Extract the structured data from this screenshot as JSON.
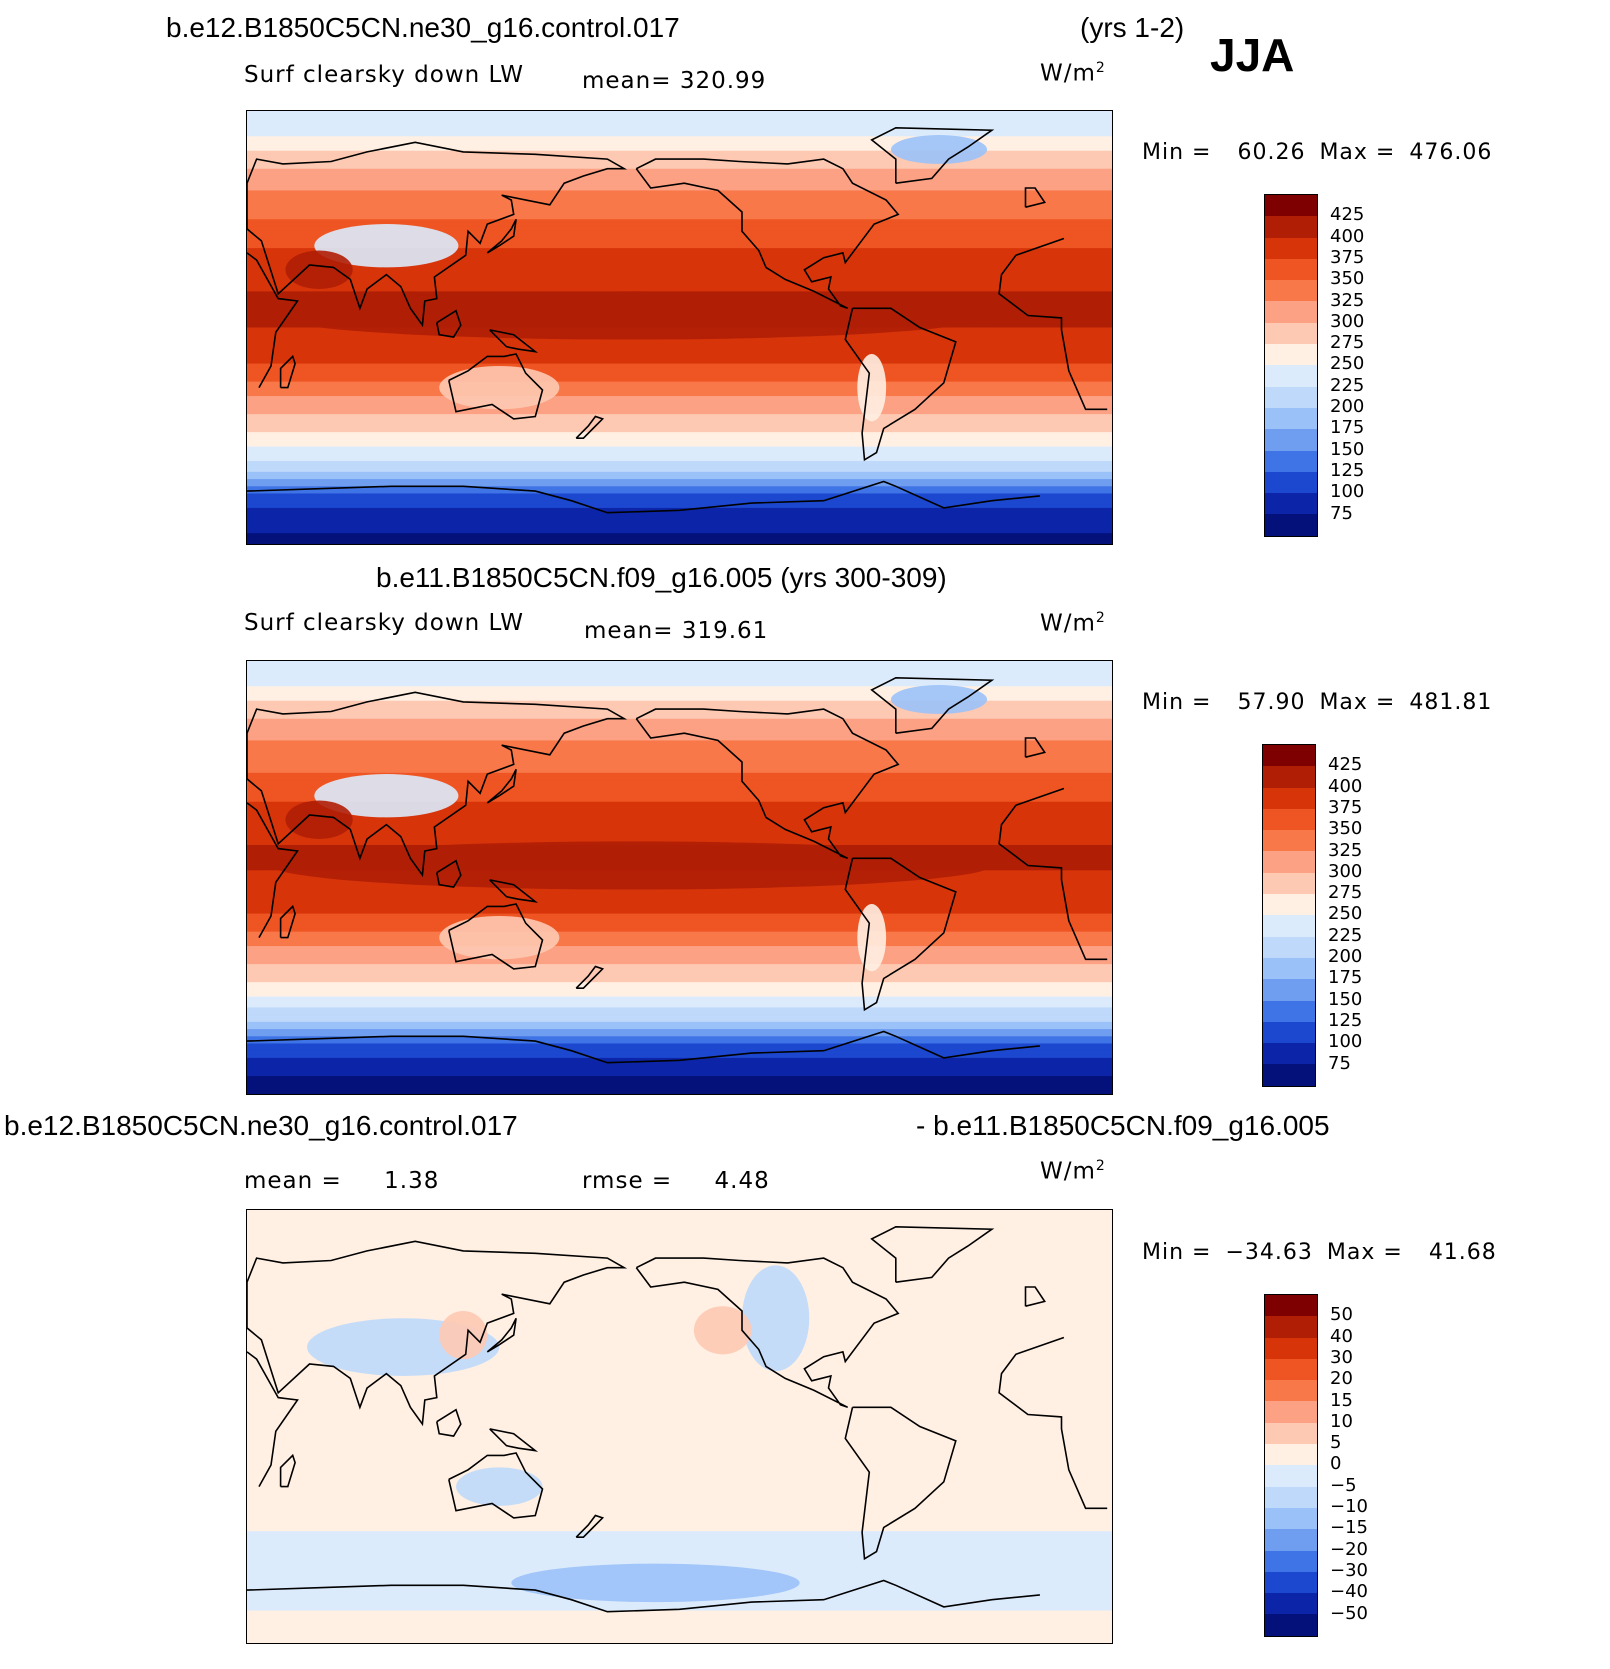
{
  "season": "JJA",
  "unit_label": "W/m",
  "unit_superscript": "2",
  "panels": [
    {
      "title": "b.e12.B1850C5CN.ne30_g16.control.017",
      "years": "(yrs 1-2)",
      "variable": "Surf clearsky down LW",
      "mean_label": "mean=",
      "mean_value": "320.99",
      "min_label": "Min =",
      "min_value": "60.26",
      "max_label": "Max =",
      "max_value": "476.06",
      "colorbar_ticks": [
        "425",
        "400",
        "375",
        "350",
        "325",
        "300",
        "275",
        "250",
        "225",
        "200",
        "175",
        "150",
        "125",
        "100",
        "75"
      ]
    },
    {
      "title": "b.e11.B1850C5CN.f09_g16.005 (yrs 300-309)",
      "variable": "Surf clearsky down LW",
      "mean_label": "mean=",
      "mean_value": "319.61",
      "min_label": "Min =",
      "min_value": "57.90",
      "max_label": "Max =",
      "max_value": "481.81",
      "colorbar_ticks": [
        "425",
        "400",
        "375",
        "350",
        "325",
        "300",
        "275",
        "250",
        "225",
        "200",
        "175",
        "150",
        "125",
        "100",
        "75"
      ]
    },
    {
      "title_left": "b.e12.B1850C5CN.ne30_g16.control.017",
      "title_right": "- b.e11.B1850C5CN.f09_g16.005",
      "mean_label": "mean =",
      "mean_value": "1.38",
      "rmse_label": "rmse =",
      "rmse_value": "4.48",
      "min_label": "Min =",
      "min_value": "−34.63",
      "max_label": "Max =",
      "max_value": "41.68",
      "colorbar_ticks": [
        "50",
        "40",
        "30",
        "20",
        "15",
        "10",
        "5",
        "0",
        "−5",
        "−10",
        "−15",
        "−20",
        "−30",
        "−40",
        "−50"
      ]
    }
  ],
  "colors": {
    "abs_palette": [
      "#7f0000",
      "#b01e05",
      "#d8340a",
      "#ee5522",
      "#f8784a",
      "#fca184",
      "#fdc9b2",
      "#fff0e3",
      "#dcebfc",
      "#bfd9fb",
      "#9bc2f8",
      "#6f9ef1",
      "#3f74e6",
      "#1c47cf",
      "#0c25a8",
      "#04117b"
    ],
    "diff_palette": [
      "#7f0000",
      "#b01e05",
      "#d8340a",
      "#ee5522",
      "#f8784a",
      "#fca184",
      "#fdc9b2",
      "#fff0e3",
      "#dcebfc",
      "#bfd9fb",
      "#9bc2f8",
      "#6f9ef1",
      "#3f74e6",
      "#1c47cf",
      "#0c25a8",
      "#04117b"
    ]
  },
  "chart_data": [
    {
      "type": "heatmap",
      "title": "b.e12.B1850C5CN.ne30_g16.control.017 (yrs 1-2)",
      "variable": "Surf clearsky down LW",
      "units": "W/m2",
      "season": "JJA",
      "mean": 320.99,
      "min": 60.26,
      "max": 476.06,
      "contour_levels": [
        75,
        100,
        125,
        150,
        175,
        200,
        225,
        250,
        275,
        300,
        325,
        350,
        375,
        400,
        425
      ],
      "zonal_profile": {
        "lat": [
          90,
          80,
          70,
          60,
          50,
          40,
          30,
          20,
          10,
          0,
          -10,
          -20,
          -30,
          -40,
          -50,
          -60,
          -70,
          -80,
          -90
        ],
        "value": [
          240,
          250,
          290,
          320,
          340,
          360,
          380,
          395,
          405,
          400,
          390,
          360,
          320,
          290,
          250,
          200,
          120,
          80,
          70
        ]
      }
    },
    {
      "type": "heatmap",
      "title": "b.e11.B1850C5CN.f09_g16.005 (yrs 300-309)",
      "variable": "Surf clearsky down LW",
      "units": "W/m2",
      "season": "JJA",
      "mean": 319.61,
      "min": 57.9,
      "max": 481.81,
      "contour_levels": [
        75,
        100,
        125,
        150,
        175,
        200,
        225,
        250,
        275,
        300,
        325,
        350,
        375,
        400,
        425
      ],
      "zonal_profile": {
        "lat": [
          90,
          80,
          70,
          60,
          50,
          40,
          30,
          20,
          10,
          0,
          -10,
          -20,
          -30,
          -40,
          -50,
          -60,
          -70,
          -80,
          -90
        ],
        "value": [
          238,
          248,
          288,
          318,
          338,
          358,
          378,
          394,
          404,
          398,
          388,
          358,
          318,
          288,
          248,
          198,
          118,
          78,
          68
        ]
      }
    },
    {
      "type": "heatmap",
      "title": "b.e12.B1850C5CN.ne30_g16.control.017 - b.e11.B1850C5CN.f09_g16.005",
      "units": "W/m2",
      "mean": 1.38,
      "rmse": 4.48,
      "min": -34.63,
      "max": 41.68,
      "contour_levels": [
        -50,
        -40,
        -30,
        -20,
        -15,
        -10,
        -5,
        0,
        5,
        10,
        15,
        20,
        30,
        40,
        50
      ],
      "zonal_profile": {
        "lat": [
          90,
          80,
          70,
          60,
          50,
          40,
          30,
          20,
          10,
          0,
          -10,
          -20,
          -30,
          -40,
          -50,
          -60,
          -70,
          -80,
          -90
        ],
        "value": [
          2,
          2,
          1,
          1,
          2,
          0,
          1,
          2,
          2,
          2,
          1,
          2,
          2,
          1,
          -2,
          -4,
          -2,
          1,
          1
        ]
      }
    }
  ]
}
